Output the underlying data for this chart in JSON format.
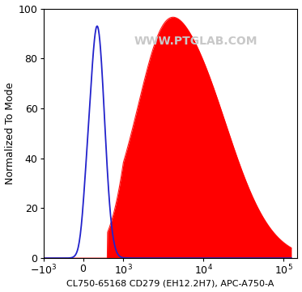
{
  "title": "WWW.PTGLAB.COM",
  "xlabel": "CL750-65168 CD279 (EH12.2H7), APC-A750-A",
  "ylabel": "Normalized To Mode",
  "ylim": [
    0,
    100
  ],
  "blue_color": "#2222CC",
  "red_color": "#FF0000",
  "watermark_color": "#C8C8C8",
  "background_color": "#FFFFFF",
  "tick_label_size": 9,
  "xlabel_size": 8,
  "ylabel_size": 9
}
